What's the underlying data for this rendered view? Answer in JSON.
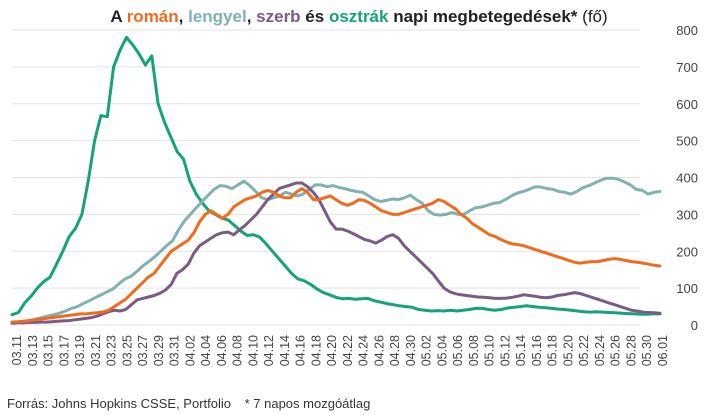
{
  "title": {
    "parts": [
      {
        "text": "A ",
        "color": "#222222",
        "weight": "bold"
      },
      {
        "text": "román",
        "color": "#f26b1d",
        "weight": "bold"
      },
      {
        "text": ", ",
        "color": "#222222",
        "weight": "bold"
      },
      {
        "text": "lengyel",
        "color": "#7fb2b0",
        "weight": "bold"
      },
      {
        "text": ", ",
        "color": "#222222",
        "weight": "bold"
      },
      {
        "text": "szerb",
        "color": "#7b5a86",
        "weight": "bold"
      },
      {
        "text": " és ",
        "color": "#222222",
        "weight": "bold"
      },
      {
        "text": "osztrák",
        "color": "#14a37b",
        "weight": "bold"
      },
      {
        "text": " napi megbetegedések*",
        "color": "#222222",
        "weight": "bold"
      },
      {
        "text": " (fő)",
        "color": "#222222",
        "weight": "normal"
      }
    ]
  },
  "source": {
    "text": "Forrás: Johns Hopkins CSSE, Portfolio",
    "note": "* 7 napos mozgóátlag"
  },
  "chart_data": {
    "type": "line",
    "grid": true,
    "y_axis_side": "right",
    "ylim": [
      0,
      800
    ],
    "yticks": [
      0,
      100,
      200,
      300,
      400,
      500,
      600,
      700,
      800
    ],
    "x_labels": [
      "03.11",
      "03.13",
      "03.15",
      "03.17",
      "03.19",
      "03.21",
      "03.23",
      "03.25",
      "03.27",
      "03.29",
      "03.31",
      "04.02",
      "04.04",
      "04.06",
      "04.08",
      "04.10",
      "04.12",
      "04.14",
      "04.16",
      "04.18",
      "04.20",
      "04.22",
      "04.24",
      "04.26",
      "04.28",
      "04.30",
      "05.02",
      "05.04",
      "05.06",
      "05.08",
      "05.10",
      "05.12",
      "05.14",
      "05.16",
      "05.18",
      "05.20",
      "05.22",
      "05.24",
      "05.26",
      "05.28",
      "05.30",
      "06.01"
    ],
    "series": [
      {
        "name": "osztrák",
        "color": "#14a37b",
        "values": [
          28,
          34,
          60,
          78,
          100,
          118,
          130,
          165,
          200,
          240,
          262,
          300,
          390,
          500,
          568,
          565,
          700,
          745,
          780,
          760,
          735,
          705,
          730,
          600,
          550,
          510,
          470,
          450,
          390,
          355,
          330,
          310,
          300,
          290,
          285,
          270,
          255,
          243,
          245,
          238,
          220,
          200,
          180,
          160,
          140,
          125,
          120,
          110,
          98,
          88,
          82,
          75,
          71,
          72,
          70,
          71,
          72,
          66,
          62,
          58,
          55,
          52,
          50,
          48,
          42,
          40,
          38,
          39,
          38,
          40,
          38,
          40,
          42,
          45,
          45,
          42,
          40,
          42,
          46,
          48,
          50,
          52,
          50,
          48,
          47,
          45,
          43,
          42,
          40,
          38,
          36,
          35,
          36,
          35,
          34,
          33,
          32,
          31,
          30,
          29,
          29,
          30,
          30
        ]
      },
      {
        "name": "lengyel",
        "color": "#7fb2b0",
        "values": [
          5,
          7,
          10,
          12,
          16,
          20,
          24,
          28,
          32,
          38,
          45,
          50,
          58,
          66,
          74,
          82,
          90,
          98,
          112,
          125,
          132,
          145,
          160,
          172,
          185,
          200,
          215,
          228,
          258,
          282,
          300,
          318,
          335,
          352,
          368,
          378,
          376,
          370,
          380,
          390,
          378,
          362,
          345,
          340,
          345,
          350,
          360,
          355,
          350,
          355,
          368,
          380,
          380,
          375,
          378,
          373,
          370,
          365,
          362,
          360,
          350,
          340,
          335,
          338,
          342,
          340,
          345,
          352,
          340,
          330,
          310,
          300,
          298,
          300,
          305,
          300,
          300,
          310,
          318,
          320,
          325,
          330,
          332,
          340,
          350,
          358,
          362,
          368,
          375,
          374,
          370,
          368,
          362,
          360,
          355,
          362,
          372,
          378,
          385,
          392,
          398,
          398,
          395,
          388,
          380,
          368,
          365,
          355,
          360,
          362
        ]
      },
      {
        "name": "szerb",
        "color": "#7b5a86",
        "values": [
          5,
          6,
          6,
          7,
          7,
          8,
          8,
          9,
          10,
          11,
          12,
          14,
          16,
          18,
          20,
          24,
          30,
          36,
          40,
          38,
          42,
          55,
          68,
          72,
          76,
          80,
          86,
          95,
          110,
          140,
          150,
          165,
          195,
          215,
          225,
          235,
          245,
          250,
          252,
          245,
          258,
          270,
          285,
          300,
          320,
          340,
          355,
          370,
          375,
          380,
          385,
          385,
          375,
          360,
          340,
          310,
          280,
          260,
          260,
          255,
          248,
          240,
          232,
          228,
          222,
          230,
          240,
          245,
          235,
          215,
          200,
          185,
          170,
          155,
          140,
          120,
          100,
          90,
          85,
          82,
          80,
          78,
          76,
          75,
          74,
          72,
          72,
          73,
          75,
          78,
          82,
          80,
          78,
          75,
          74,
          76,
          80,
          82,
          85,
          88,
          85,
          80,
          75,
          70,
          65,
          60,
          55,
          50,
          45,
          40,
          38,
          35,
          34,
          33,
          32
        ]
      },
      {
        "name": "román",
        "color": "#f26b1d",
        "values": [
          8,
          9,
          10,
          12,
          14,
          16,
          18,
          20,
          22,
          24,
          26,
          28,
          30,
          30,
          32,
          33,
          35,
          40,
          50,
          60,
          70,
          85,
          100,
          115,
          130,
          140,
          160,
          180,
          200,
          210,
          220,
          230,
          250,
          280,
          300,
          310,
          300,
          290,
          300,
          320,
          330,
          340,
          345,
          350,
          360,
          365,
          360,
          350,
          345,
          345,
          360,
          370,
          360,
          340,
          340,
          345,
          350,
          340,
          330,
          325,
          330,
          340,
          338,
          330,
          320,
          310,
          305,
          300,
          300,
          305,
          310,
          315,
          320,
          325,
          330,
          340,
          335,
          325,
          315,
          300,
          290,
          275,
          265,
          255,
          245,
          240,
          232,
          225,
          220,
          218,
          215,
          210,
          205,
          200,
          195,
          190,
          185,
          180,
          175,
          170,
          168,
          170,
          172,
          172,
          175,
          178,
          180,
          178,
          175,
          172,
          170,
          168,
          165,
          162,
          160
        ]
      }
    ]
  }
}
